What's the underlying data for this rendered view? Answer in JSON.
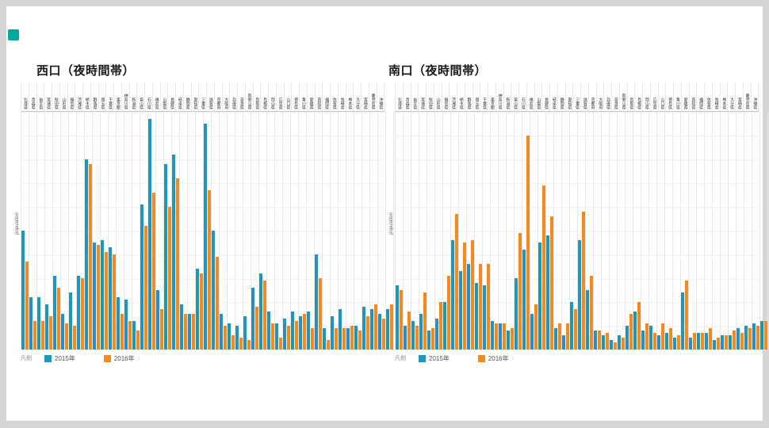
{
  "page": {
    "background": "#d6d6d6",
    "panel_color": "#ffffff",
    "corner_icon_color": "#00a79b"
  },
  "legend_label": "凡例",
  "colors": {
    "series_2015": "#2196bd",
    "series_2016": "#f5891d",
    "gridline": "#efefef",
    "column_line": "#e9e9e9",
    "axis_line": "#c9c9c9"
  },
  "chart_data": [
    {
      "type": "bar",
      "title": "西口（夜時間帯）",
      "ylabel": "population",
      "unit": "relative height (0-100 = full plot height; y axis has no numeric tick labels)",
      "y_divisions": 10,
      "legend_position": "bottom-left",
      "categories": [
        "北海道",
        "青森県",
        "岩手県",
        "宮城県",
        "秋田県",
        "山形県",
        "福島県",
        "茨城県",
        "栃木県",
        "群馬県",
        "埼玉県",
        "千葉県",
        "東京都",
        "神奈川県",
        "新潟県",
        "富山県",
        "石川県",
        "福井県",
        "山梨県",
        "長野県",
        "岐阜県",
        "静岡県",
        "愛知県",
        "三重県",
        "滋賀県",
        "京都府",
        "大阪府",
        "兵庫県",
        "奈良県",
        "和歌山県",
        "鳥取県",
        "島根県",
        "岡山県",
        "広島県",
        "山口県",
        "徳島県",
        "香川県",
        "愛媛県",
        "高知県",
        "福岡県",
        "佐賀県",
        "長崎県",
        "熊本県",
        "大分県",
        "宮崎県",
        "鹿児島県",
        "沖縄県"
      ],
      "series": [
        {
          "name": "2015年",
          "color": "#2196bd",
          "values": [
            50,
            22,
            22,
            19,
            31,
            15,
            24,
            31,
            80,
            45,
            46,
            43,
            22,
            21,
            12,
            61,
            97,
            25,
            78,
            82,
            19,
            15,
            34,
            95,
            50,
            15,
            11,
            10,
            14,
            26,
            32,
            16,
            11,
            13,
            16,
            14,
            16,
            40,
            9,
            14,
            17,
            9,
            10,
            18,
            17,
            15,
            17
          ]
        },
        {
          "name": "2016年",
          "color": "#f5891d",
          "values": [
            37,
            12,
            12,
            14,
            26,
            11,
            10,
            30,
            78,
            44,
            41,
            40,
            15,
            12,
            8,
            52,
            66,
            17,
            60,
            72,
            15,
            15,
            32,
            67,
            39,
            10,
            6,
            5,
            4,
            18,
            29,
            11,
            5,
            10,
            12,
            15,
            9,
            30,
            4,
            9,
            9,
            10,
            8,
            14,
            19,
            13,
            19
          ]
        }
      ]
    },
    {
      "type": "bar",
      "title": "南口（夜時間帯）",
      "ylabel": "population",
      "unit": "relative height (0-100 = full plot height; y axis has no numeric tick labels)",
      "y_divisions": 10,
      "legend_position": "bottom-left",
      "categories": [
        "北海道",
        "青森県",
        "岩手県",
        "宮城県",
        "秋田県",
        "山形県",
        "福島県",
        "茨城県",
        "栃木県",
        "群馬県",
        "埼玉県",
        "千葉県",
        "東京都",
        "神奈川県",
        "新潟県",
        "富山県",
        "石川県",
        "福井県",
        "山梨県",
        "長野県",
        "岐阜県",
        "静岡県",
        "愛知県",
        "三重県",
        "滋賀県",
        "京都府",
        "大阪府",
        "兵庫県",
        "奈良県",
        "和歌山県",
        "鳥取県",
        "島根県",
        "岡山県",
        "広島県",
        "山口県",
        "徳島県",
        "香川県",
        "愛媛県",
        "高知県",
        "福岡県",
        "佐賀県",
        "長崎県",
        "熊本県",
        "大分県",
        "宮崎県",
        "鹿児島県",
        "沖縄県"
      ],
      "series": [
        {
          "name": "2015年",
          "color": "#2196bd",
          "values": [
            27,
            10,
            12,
            15,
            8,
            13,
            20,
            46,
            33,
            36,
            28,
            27,
            12,
            11,
            8,
            30,
            42,
            15,
            45,
            48,
            9,
            6,
            20,
            46,
            25,
            8,
            6,
            4,
            6,
            10,
            16,
            8,
            10,
            6,
            7,
            5,
            24,
            5,
            7,
            7,
            4,
            6,
            6,
            9,
            10,
            11,
            12
          ]
        },
        {
          "name": "2016年",
          "color": "#f5891d",
          "values": [
            25,
            16,
            10,
            24,
            9,
            20,
            31,
            57,
            45,
            46,
            36,
            36,
            11,
            11,
            9,
            49,
            90,
            19,
            69,
            56,
            11,
            11,
            17,
            58,
            31,
            8,
            7,
            3,
            5,
            15,
            20,
            11,
            7,
            11,
            9,
            6,
            29,
            7,
            7,
            9,
            5,
            6,
            8,
            7,
            9,
            10,
            12
          ]
        }
      ]
    }
  ]
}
